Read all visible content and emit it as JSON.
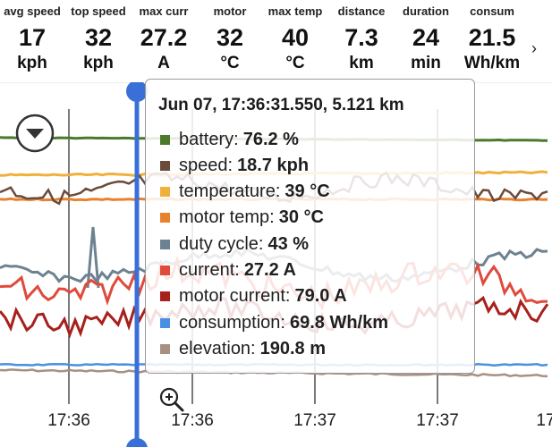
{
  "stats": [
    {
      "label": "avg speed",
      "value": "17",
      "unit": "kph"
    },
    {
      "label": "top speed",
      "value": "32",
      "unit": "kph"
    },
    {
      "label": "max curr",
      "value": "27.2",
      "unit": "A"
    },
    {
      "label": "motor",
      "value": "32",
      "unit": "°C"
    },
    {
      "label": "max temp",
      "value": "40",
      "unit": "°C"
    },
    {
      "label": "distance",
      "value": "7.3",
      "unit": "km"
    },
    {
      "label": "duration",
      "value": "24",
      "unit": "min"
    },
    {
      "label": "consum",
      "value": "21.5",
      "unit": "Wh/km"
    }
  ],
  "tooltip": {
    "header": "Jun 07, 17:36:31.550, 5.121 km",
    "rows": [
      {
        "name": "battery:",
        "value": "76.2 %",
        "color": "#4c7a2a"
      },
      {
        "name": "speed:",
        "value": "18.7 kph",
        "color": "#6b4a3a"
      },
      {
        "name": "temperature:",
        "value": "39 °C",
        "color": "#f0b13c"
      },
      {
        "name": "motor temp:",
        "value": "30 °C",
        "color": "#e8822e"
      },
      {
        "name": "duty cycle:",
        "value": "43 %",
        "color": "#6d8290"
      },
      {
        "name": "current:",
        "value": "27.2 A",
        "color": "#e04a3c"
      },
      {
        "name": "motor current:",
        "value": "79.0 A",
        "color": "#a8201c"
      },
      {
        "name": "consumption:",
        "value": "69.8 Wh/km",
        "color": "#4a90e2"
      },
      {
        "name": "elevation:",
        "value": "190.8 m",
        "color": "#a89080"
      }
    ]
  },
  "x_ticks": [
    "17:36",
    "17:36",
    "17:37",
    "17:37",
    "17"
  ],
  "colors": {
    "cursor": "#3a6fd8",
    "battery": "#4c7a2a",
    "speed": "#6b4a3a",
    "temperature": "#f0b13c",
    "motor_temp": "#e8822e",
    "duty": "#6d8290",
    "current": "#e04a3c",
    "motor_current": "#a8201c",
    "consumption": "#4a90e2",
    "elevation": "#a89080"
  },
  "icons": {
    "menu": "chevron-down-circle-icon",
    "zoom": "zoom-in-icon",
    "next": "chevron-right-icon"
  }
}
